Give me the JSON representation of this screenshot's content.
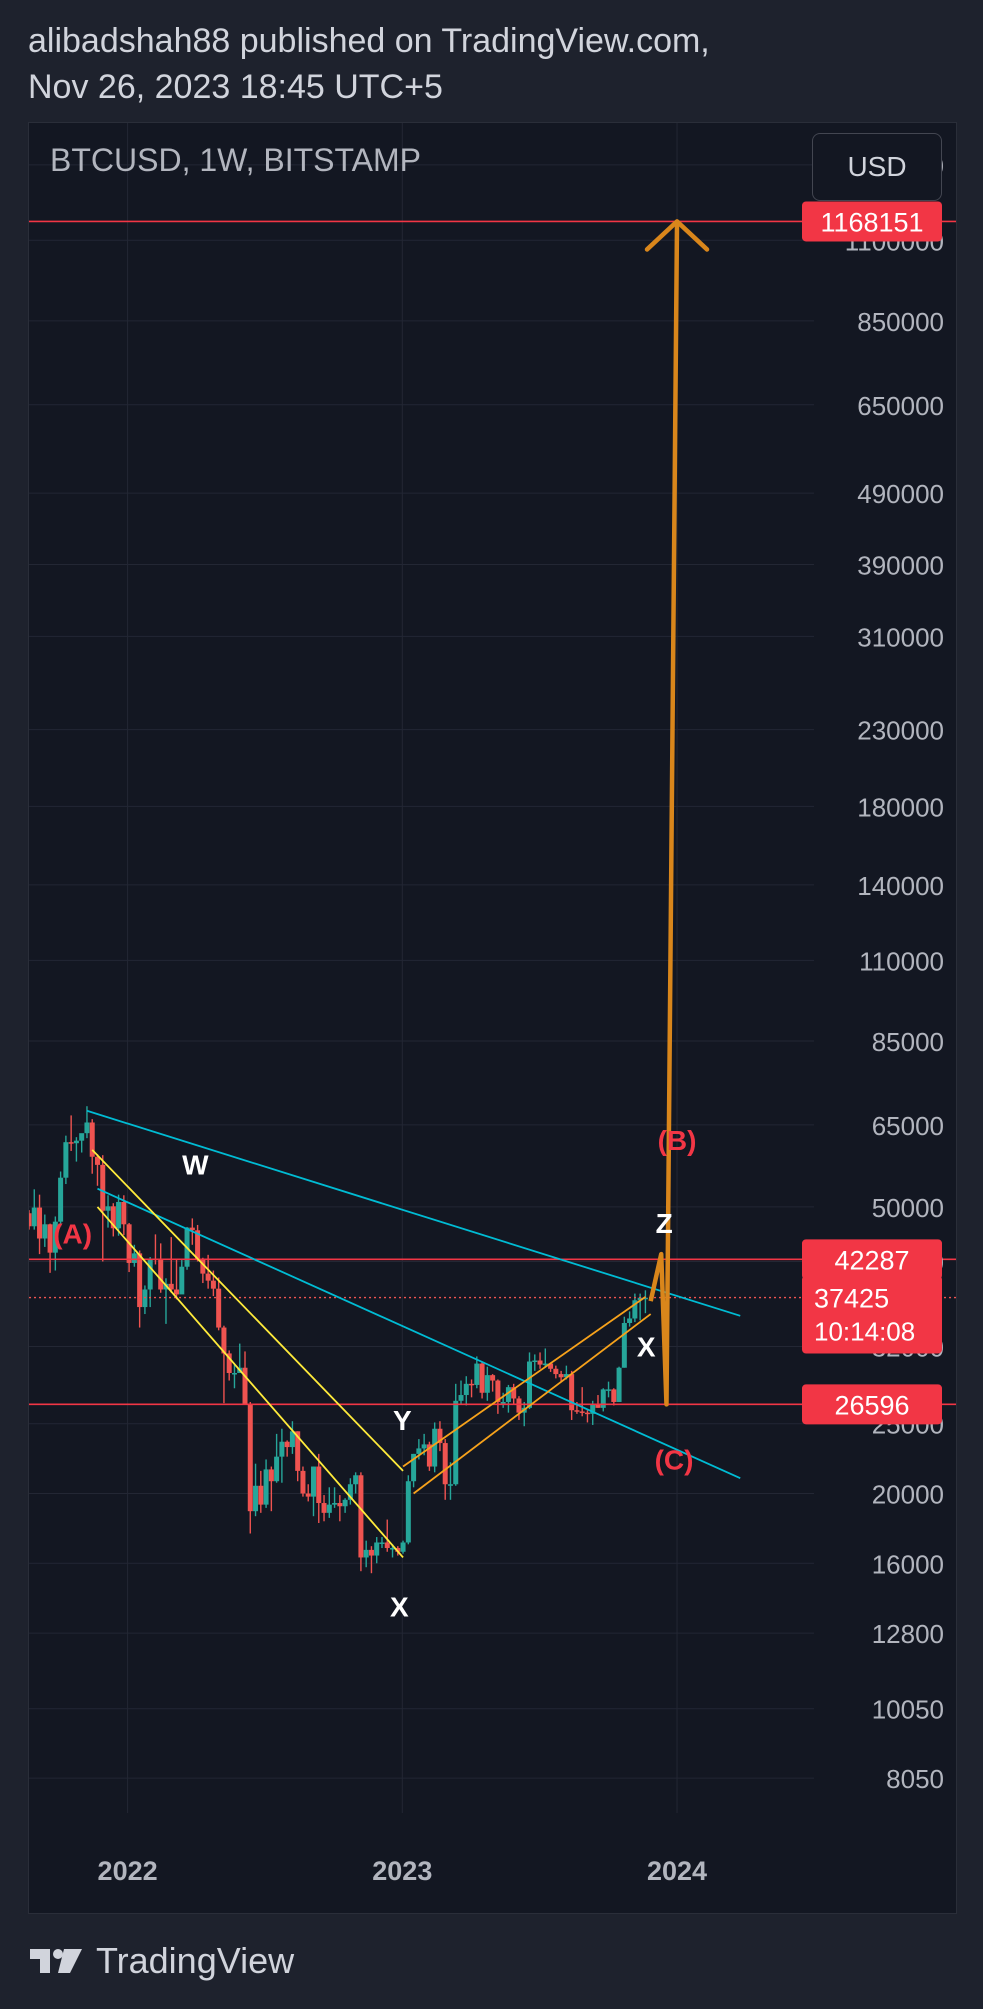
{
  "header": {
    "line1": "alibadshah88 published on TradingView.com,",
    "line2": "Nov 26, 2023 18:45 UTC+5"
  },
  "symbol": "BTCUSD, 1W, BITSTAMP",
  "currency_button": "USD",
  "footer": {
    "brand": "TradingView"
  },
  "colors": {
    "background": "#131722",
    "up": "#26a69a",
    "down": "#ef5350",
    "level_line": "#f23645",
    "trend_cyan": "#00bcd4",
    "channel_yellow": "#ffeb3b",
    "channel_orange": "#f7a21b",
    "arrow_orange": "#d9861b",
    "wave_white": "#ffffff",
    "wave_red": "#f23645"
  },
  "chart_data": {
    "type": "candlestick",
    "scale": "log",
    "grid": true,
    "ylim": [
      7200,
      1550000
    ],
    "xlim": [
      "2021-08-23",
      "2024-07-01"
    ],
    "y_ticks": [
      "1400000",
      "1100000",
      "850000",
      "650000",
      "490000",
      "390000",
      "310000",
      "230000",
      "180000",
      "140000",
      "110000",
      "85000",
      "65000",
      "50000",
      "42000",
      "32000",
      "25000",
      "20000",
      "16000",
      "12800",
      "10050",
      "8050"
    ],
    "x_ticks": [
      {
        "date": "2022-01-01",
        "label": "2022"
      },
      {
        "date": "2023-01-01",
        "label": "2023"
      },
      {
        "date": "2024-01-01",
        "label": "2024"
      }
    ],
    "price_levels": [
      {
        "value": 1168151,
        "label": "1168151"
      },
      {
        "value": 42287,
        "label": "42287"
      },
      {
        "value": 26596,
        "label": "26596"
      }
    ],
    "current_price": {
      "value": 37425,
      "label": "37425",
      "countdown": "10:14:08"
    },
    "wave_labels": [
      {
        "text": "W",
        "date": "2022-04-01",
        "value": 55500,
        "color": "white"
      },
      {
        "text": "X",
        "date": "2022-12-28",
        "value": 13500,
        "color": "white"
      },
      {
        "text": "Y",
        "date": "2023-01-01",
        "value": 24500,
        "color": "white"
      },
      {
        "text": "X",
        "date": "2023-11-21",
        "value": 31000,
        "color": "white"
      },
      {
        "text": "Z",
        "date": "2023-12-15",
        "value": 46000,
        "color": "white"
      },
      {
        "text": "(A)",
        "date": "2021-10-20",
        "value": 44500,
        "color": "red"
      },
      {
        "text": "(B)",
        "date": "2024-01-01",
        "value": 60000,
        "color": "red"
      },
      {
        "text": "(C)",
        "date": "2023-12-28",
        "value": 21600,
        "color": "red"
      }
    ],
    "trendlines": [
      {
        "name": "upper-cyan",
        "from": [
          "2021-11-08",
          68000
        ],
        "to": [
          "2024-03-25",
          35300
        ],
        "color": "cyan"
      },
      {
        "name": "lower-cyan",
        "from": [
          "2021-11-22",
          53000
        ],
        "to": [
          "2024-03-25",
          21000
        ],
        "color": "cyan"
      },
      {
        "name": "yellow-upper",
        "from": [
          "2021-11-15",
          60000
        ],
        "to": [
          "2023-01-02",
          21500
        ],
        "color": "yellow"
      },
      {
        "name": "yellow-lower",
        "from": [
          "2021-11-22",
          50000
        ],
        "to": [
          "2023-01-02",
          16300
        ],
        "color": "yellow"
      },
      {
        "name": "orange-upper",
        "from": [
          "2023-01-02",
          21800
        ],
        "to": [
          "2023-11-20",
          37500
        ],
        "color": "orange"
      },
      {
        "name": "orange-lower",
        "from": [
          "2023-01-16",
          20000
        ],
        "to": [
          "2023-11-27",
          35500
        ],
        "color": "orange"
      }
    ],
    "projection_path": [
      [
        "2023-11-27",
        37000
      ],
      [
        "2023-12-11",
        43000
      ],
      [
        "2023-12-18",
        26596
      ],
      [
        "2024-01-01",
        1168151
      ]
    ],
    "candles": [
      [
        "2021-08-23",
        49000,
        49500,
        46500,
        47000
      ],
      [
        "2021-08-30",
        47000,
        52900,
        46500,
        49900
      ],
      [
        "2021-09-06",
        49900,
        52000,
        43000,
        45200
      ],
      [
        "2021-09-13",
        45200,
        48800,
        44000,
        47300
      ],
      [
        "2021-09-20",
        47300,
        47400,
        40500,
        43200
      ],
      [
        "2021-09-27",
        43200,
        48500,
        40800,
        47700
      ],
      [
        "2021-10-04",
        47700,
        56000,
        47000,
        54900
      ],
      [
        "2021-10-11",
        54900,
        62800,
        53800,
        61500
      ],
      [
        "2021-10-18",
        61500,
        67000,
        59800,
        61300
      ],
      [
        "2021-10-25",
        61300,
        62500,
        57800,
        61800
      ],
      [
        "2021-11-01",
        61800,
        63200,
        59500,
        63300
      ],
      [
        "2021-11-08",
        63300,
        69000,
        62300,
        65500
      ],
      [
        "2021-11-15",
        65500,
        66200,
        55600,
        58700
      ],
      [
        "2021-11-22",
        58700,
        59200,
        53500,
        57200
      ],
      [
        "2021-11-29",
        57200,
        59000,
        42000,
        49400
      ],
      [
        "2021-12-06",
        49400,
        51900,
        46800,
        50100
      ],
      [
        "2021-12-13",
        50100,
        50600,
        45500,
        46700
      ],
      [
        "2021-12-20",
        46700,
        52000,
        45600,
        50800
      ],
      [
        "2021-12-27",
        50800,
        51900,
        45700,
        47300
      ],
      [
        "2022-01-03",
        47300,
        47500,
        40600,
        41800
      ],
      [
        "2022-01-10",
        41800,
        44300,
        41300,
        43100
      ],
      [
        "2022-01-17",
        43100,
        43500,
        34000,
        36300
      ],
      [
        "2022-01-24",
        36300,
        38900,
        35500,
        38400
      ],
      [
        "2022-01-31",
        38400,
        42600,
        36300,
        42400
      ],
      [
        "2022-02-07",
        42400,
        45800,
        41600,
        42200
      ],
      [
        "2022-02-14",
        42200,
        44500,
        38000,
        38400
      ],
      [
        "2022-02-21",
        38400,
        39800,
        34400,
        39100
      ],
      [
        "2022-02-28",
        39100,
        45400,
        38000,
        38400
      ],
      [
        "2022-03-07",
        38400,
        42300,
        37200,
        37800
      ],
      [
        "2022-03-14",
        37800,
        42300,
        38000,
        41300
      ],
      [
        "2022-03-21",
        41300,
        46900,
        40900,
        46800
      ],
      [
        "2022-03-28",
        46800,
        48200,
        44300,
        46400
      ],
      [
        "2022-04-04",
        46400,
        47200,
        42000,
        42200
      ],
      [
        "2022-04-11",
        42200,
        42500,
        39200,
        40400
      ],
      [
        "2022-04-18",
        40400,
        42900,
        38500,
        39500
      ],
      [
        "2022-04-25",
        39500,
        40800,
        37600,
        38500
      ],
      [
        "2022-05-02",
        38500,
        39900,
        33700,
        34000
      ],
      [
        "2022-05-09",
        34000,
        34200,
        26700,
        31300
      ],
      [
        "2022-05-16",
        31300,
        31600,
        28700,
        29400
      ],
      [
        "2022-05-23",
        29400,
        30200,
        28000,
        29400
      ],
      [
        "2022-05-30",
        29400,
        32300,
        29400,
        29900
      ],
      [
        "2022-06-06",
        29900,
        31500,
        26700,
        26600
      ],
      [
        "2022-06-13",
        26600,
        26800,
        17600,
        18900
      ],
      [
        "2022-06-20",
        18900,
        22000,
        18600,
        20500
      ],
      [
        "2022-06-27",
        20500,
        21500,
        18800,
        19300
      ],
      [
        "2022-07-04",
        19300,
        22300,
        19100,
        21600
      ],
      [
        "2022-07-11",
        21600,
        21800,
        18900,
        20800
      ],
      [
        "2022-07-18",
        20800,
        24200,
        20700,
        22500
      ],
      [
        "2022-07-25",
        22500,
        24600,
        20700,
        23600
      ],
      [
        "2022-08-01",
        23600,
        23700,
        22500,
        23200
      ],
      [
        "2022-08-08",
        23200,
        25200,
        22700,
        24400
      ],
      [
        "2022-08-15",
        24400,
        24400,
        20800,
        21500
      ],
      [
        "2022-08-22",
        21500,
        21800,
        19800,
        20000
      ],
      [
        "2022-08-29",
        20000,
        20600,
        19500,
        19800
      ],
      [
        "2022-09-05",
        19800,
        21800,
        18600,
        21800
      ],
      [
        "2022-09-12",
        21800,
        22700,
        18200,
        19400
      ],
      [
        "2022-09-19",
        19400,
        19900,
        18300,
        18800
      ],
      [
        "2022-09-26",
        18800,
        20400,
        18500,
        19300
      ],
      [
        "2022-10-03",
        19300,
        20400,
        19100,
        19400
      ],
      [
        "2022-10-10",
        19400,
        19900,
        18300,
        19200
      ],
      [
        "2022-10-17",
        19200,
        19700,
        18800,
        19600
      ],
      [
        "2022-10-24",
        19600,
        21000,
        19300,
        20600
      ],
      [
        "2022-10-31",
        20600,
        21400,
        20000,
        21200
      ],
      [
        "2022-11-07",
        21200,
        21400,
        15600,
        16300
      ],
      [
        "2022-11-14",
        16300,
        17200,
        15800,
        16700
      ],
      [
        "2022-11-21",
        16700,
        16900,
        15500,
        16400
      ],
      [
        "2022-11-28",
        16400,
        17400,
        16000,
        17100
      ],
      [
        "2022-12-05",
        17100,
        17400,
        16800,
        17100
      ],
      [
        "2022-12-12",
        17100,
        18400,
        16600,
        16800
      ],
      [
        "2022-12-19",
        16800,
        17000,
        16300,
        16800
      ],
      [
        "2022-12-26",
        16800,
        16900,
        16400,
        16600
      ],
      [
        "2023-01-02",
        16600,
        17200,
        16500,
        17100
      ],
      [
        "2023-01-09",
        17100,
        21200,
        17000,
        20800
      ],
      [
        "2023-01-16",
        20800,
        22700,
        20400,
        22700
      ],
      [
        "2023-01-23",
        22700,
        23800,
        22300,
        23100
      ],
      [
        "2023-01-30",
        23100,
        24200,
        22600,
        23400
      ],
      [
        "2023-02-06",
        23400,
        23600,
        21500,
        21800
      ],
      [
        "2023-02-13",
        21800,
        25100,
        21400,
        24600
      ],
      [
        "2023-02-20",
        24600,
        25200,
        22900,
        23500
      ],
      [
        "2023-02-27",
        23500,
        23800,
        19600,
        20600
      ],
      [
        "2023-03-06",
        20600,
        22100,
        19600,
        20600
      ],
      [
        "2023-03-13",
        20600,
        28400,
        20500,
        26900
      ],
      [
        "2023-03-20",
        26900,
        28700,
        26600,
        27400
      ],
      [
        "2023-03-27",
        27400,
        29100,
        26500,
        28400
      ],
      [
        "2023-04-03",
        28400,
        28800,
        27200,
        28300
      ],
      [
        "2023-04-10",
        28300,
        31000,
        28000,
        30300
      ],
      [
        "2023-04-17",
        30300,
        30500,
        27100,
        27600
      ],
      [
        "2023-04-24",
        27600,
        30000,
        26900,
        29200
      ],
      [
        "2023-05-01",
        29200,
        29300,
        27700,
        28700
      ],
      [
        "2023-05-08",
        28700,
        28800,
        25800,
        26800
      ],
      [
        "2023-05-15",
        26800,
        27600,
        26300,
        26800
      ],
      [
        "2023-05-22",
        26800,
        28300,
        25900,
        28100
      ],
      [
        "2023-05-29",
        28100,
        28400,
        26600,
        27100
      ],
      [
        "2023-06-05",
        27100,
        27300,
        25300,
        25900
      ],
      [
        "2023-06-12",
        25900,
        26800,
        24800,
        26300
      ],
      [
        "2023-06-19",
        26300,
        31400,
        26200,
        30500
      ],
      [
        "2023-06-26",
        30500,
        31200,
        29600,
        30600
      ],
      [
        "2023-07-03",
        30600,
        31400,
        29800,
        30200
      ],
      [
        "2023-07-10",
        30200,
        31800,
        29900,
        30300
      ],
      [
        "2023-07-17",
        30300,
        30400,
        29500,
        29800
      ],
      [
        "2023-07-24",
        29800,
        30100,
        28900,
        29300
      ],
      [
        "2023-07-31",
        29300,
        29600,
        28600,
        29000
      ],
      [
        "2023-08-07",
        29000,
        30100,
        28800,
        29300
      ],
      [
        "2023-08-14",
        29300,
        29600,
        25300,
        26100
      ],
      [
        "2023-08-21",
        26100,
        26800,
        25800,
        26000
      ],
      [
        "2023-08-28",
        26000,
        28100,
        25600,
        25900
      ],
      [
        "2023-09-04",
        25900,
        26100,
        25100,
        25800
      ],
      [
        "2023-09-11",
        25800,
        26900,
        24900,
        26600
      ],
      [
        "2023-09-18",
        26600,
        27400,
        26300,
        26300
      ],
      [
        "2023-09-25",
        26300,
        28000,
        26000,
        27900
      ],
      [
        "2023-10-02",
        27900,
        28600,
        27200,
        27900
      ],
      [
        "2023-10-09",
        27900,
        28000,
        26500,
        26800
      ],
      [
        "2023-10-16",
        26800,
        30000,
        26800,
        29900
      ],
      [
        "2023-10-23",
        29900,
        35200,
        29900,
        34500
      ],
      [
        "2023-10-30",
        34500,
        35800,
        34100,
        35000
      ],
      [
        "2023-11-06",
        35000,
        37900,
        34600,
        37100
      ],
      [
        "2023-11-13",
        37100,
        37900,
        34800,
        37400
      ],
      [
        "2023-11-20",
        37400,
        38300,
        35600,
        37400
      ]
    ]
  }
}
